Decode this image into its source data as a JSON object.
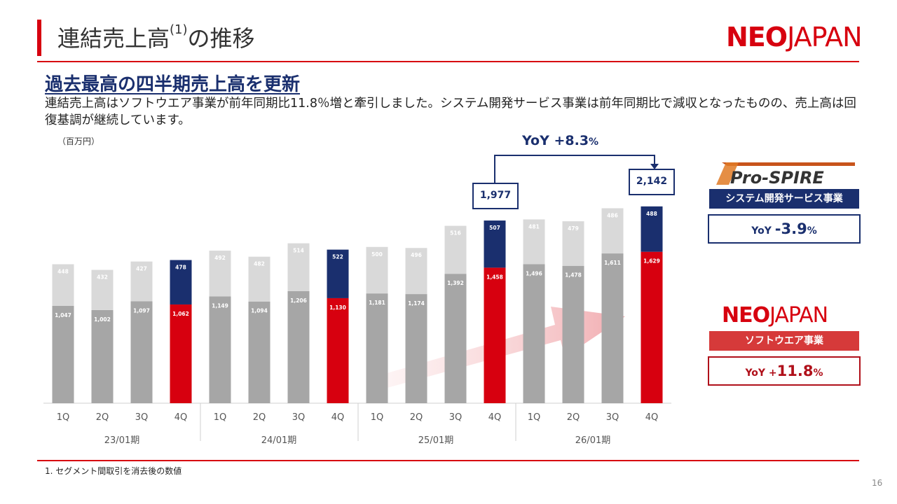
{
  "header": {
    "title": "連結売上高",
    "title_sup": "(1)",
    "title_suffix": "の推移",
    "logo_neo": "NEO",
    "logo_japan": "JAPAN"
  },
  "headline": "過去最高の四半期売上高を更新",
  "description": "連結売上高はソフトウエア事業が前年同期比11.8％増と牽引しました。システム開発サービス事業は前年同期比で減収となったものの、売上高は回復基調が継続しています。",
  "unit_label": "（百万円）",
  "callouts": {
    "left_total": "1,977",
    "right_total": "2,142",
    "yoy_prefix": "YoY +",
    "yoy_value": "8.3",
    "yoy_pct": "%"
  },
  "legend": {
    "prospire_logo": "Pro-SPIRE",
    "prospire_band": "システム開発サービス事業",
    "prospire_yoy_prefix": "YoY ",
    "prospire_yoy_value": "-3.9",
    "prospire_yoy_pct": "%",
    "neo_logo_neo": "NEO",
    "neo_logo_japan": "JAPAN",
    "neo_band": "ソフトウエア事業",
    "neo_yoy_prefix": "YoY +",
    "neo_yoy_value": "11.8",
    "neo_yoy_pct": "%"
  },
  "footnote": "1.  セグメント間取引を消去後の数値",
  "page_number": "16",
  "colors": {
    "accent_red": "#d7000f",
    "navy": "#1a2f6e",
    "gray_software": "#a6a6a6",
    "gray_sysdev": "#d9d9d9",
    "band_red": "#d63a3a"
  },
  "chart_data": {
    "type": "bar",
    "stacked": true,
    "unit": "百万円",
    "categories": [
      "1Q",
      "2Q",
      "3Q",
      "4Q",
      "1Q",
      "2Q",
      "3Q",
      "4Q",
      "1Q",
      "2Q",
      "3Q",
      "4Q",
      "1Q",
      "2Q",
      "3Q",
      "4Q"
    ],
    "groups": [
      "23/01期",
      "24/01期",
      "25/01期",
      "26/01期"
    ],
    "series": [
      {
        "name": "ソフトウエア事業",
        "values": [
          1047,
          1002,
          1097,
          1062,
          1149,
          1094,
          1206,
          1130,
          1181,
          1174,
          1392,
          1458,
          1496,
          1478,
          1611,
          1629
        ],
        "labels": [
          "1,047",
          "1,002",
          "1,097",
          "1,062",
          "1,149",
          "1,094",
          "1,206",
          "1,130",
          "1,181",
          "1,174",
          "1,392",
          "1,458",
          "1,496",
          "1,478",
          "1,611",
          "1,629"
        ]
      },
      {
        "name": "システム開発サービス事業",
        "values": [
          448,
          432,
          427,
          478,
          492,
          482,
          514,
          522,
          500,
          496,
          516,
          507,
          481,
          479,
          486,
          488
        ],
        "labels": [
          "448",
          "432",
          "427",
          "478",
          "492",
          "482",
          "514",
          "522",
          "500",
          "496",
          "516",
          "507",
          "481",
          "479",
          "486",
          "488"
        ]
      }
    ],
    "highlight_indices": [
      3,
      7,
      11,
      15
    ],
    "ylim": [
      0,
      2300
    ]
  }
}
